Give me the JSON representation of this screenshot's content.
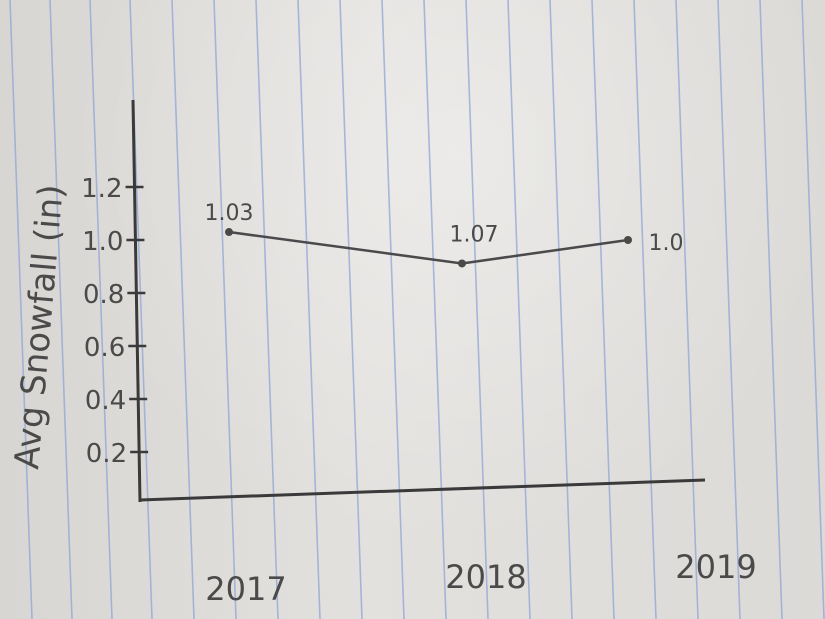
{
  "chart_data": {
    "type": "line",
    "title": "",
    "xlabel": "",
    "ylabel": "Avg Snowfall (in)",
    "categories": [
      "2017",
      "2018",
      "2019"
    ],
    "series": [
      {
        "values": [
          1.03,
          1.07,
          1.0
        ]
      }
    ],
    "data_labels": [
      "1.03",
      "1.07",
      "1.0"
    ],
    "yticks": [
      "0.2",
      "0.4",
      "0.6",
      "0.8",
      "1.0",
      "1.2"
    ],
    "ylim": [
      0,
      1.2
    ],
    "grid": false,
    "colors": {
      "ink": "#4a4a4a",
      "paper_rule": "#8fa6d6"
    }
  }
}
